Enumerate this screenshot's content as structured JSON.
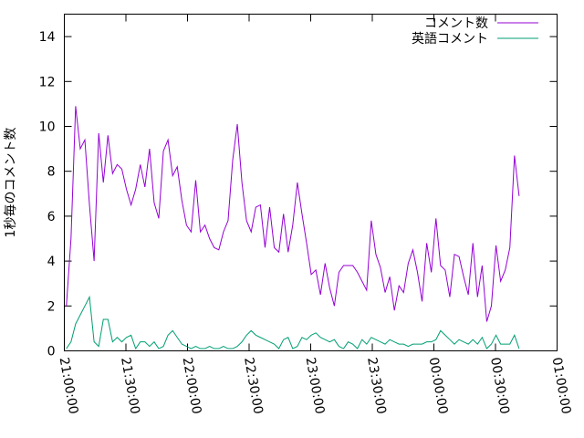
{
  "chart_data": {
    "type": "line",
    "y_label": "1秒毎のコメント数",
    "ylim": [
      0,
      15
    ],
    "yticks": [
      0,
      2,
      4,
      6,
      8,
      10,
      12,
      14
    ],
    "xlim": [
      "21:00:00",
      "01:00:00"
    ],
    "xticks": [
      "21:00:00",
      "21:30:00",
      "22:00:00",
      "22:30:00",
      "23:00:00",
      "23:30:00",
      "00:00:00",
      "00:30:00",
      "01:00:00"
    ],
    "legend": "upper right",
    "x": [
      "21:01:00",
      "21:03:15",
      "21:05:30",
      "21:07:45",
      "21:10:00",
      "21:12:15",
      "21:14:30",
      "21:16:45",
      "21:19:00",
      "21:21:15",
      "21:23:30",
      "21:25:45",
      "21:28:00",
      "21:30:15",
      "21:32:30",
      "21:34:45",
      "21:37:00",
      "21:39:15",
      "21:41:30",
      "21:43:45",
      "21:46:00",
      "21:48:15",
      "21:50:30",
      "21:52:45",
      "21:55:00",
      "21:57:15",
      "21:59:30",
      "22:01:45",
      "22:04:00",
      "22:06:15",
      "22:08:30",
      "22:10:45",
      "22:13:00",
      "22:15:15",
      "22:17:30",
      "22:19:45",
      "22:22:00",
      "22:24:15",
      "22:26:30",
      "22:28:45",
      "22:31:00",
      "22:33:15",
      "22:35:30",
      "22:37:45",
      "22:40:00",
      "22:42:15",
      "22:44:30",
      "22:46:45",
      "22:49:00",
      "22:51:15",
      "22:53:30",
      "22:55:45",
      "22:58:00",
      "23:00:15",
      "23:02:30",
      "23:04:45",
      "23:07:00",
      "23:09:15",
      "23:11:30",
      "23:13:45",
      "23:16:00",
      "23:18:15",
      "23:20:30",
      "23:22:45",
      "23:25:00",
      "23:27:15",
      "23:29:30",
      "23:31:45",
      "23:34:00",
      "23:36:15",
      "23:38:30",
      "23:40:45",
      "23:43:00",
      "23:45:15",
      "23:47:30",
      "23:49:45",
      "23:52:00",
      "23:54:15",
      "23:56:30",
      "23:58:45",
      "00:01:00",
      "00:03:15",
      "00:05:30",
      "00:07:45",
      "00:10:00",
      "00:12:15",
      "00:14:30",
      "00:16:45",
      "00:19:00",
      "00:21:15",
      "00:23:30",
      "00:25:45",
      "00:28:00",
      "00:30:15",
      "00:32:30",
      "00:34:45",
      "00:37:00",
      "00:39:15",
      "00:41:30"
    ],
    "series": [
      {
        "name": "コメント数",
        "color": "#9400d3",
        "values": [
          2.0,
          5.0,
          10.9,
          9.0,
          9.4,
          6.5,
          4.0,
          9.7,
          7.5,
          9.6,
          7.9,
          8.3,
          8.1,
          7.2,
          6.5,
          7.2,
          8.3,
          7.3,
          9.0,
          6.6,
          5.9,
          8.9,
          9.4,
          7.8,
          8.2,
          6.7,
          5.6,
          5.3,
          7.6,
          5.3,
          5.6,
          5.0,
          4.6,
          4.5,
          5.3,
          5.8,
          8.5,
          10.1,
          7.5,
          5.8,
          5.3,
          6.4,
          6.5,
          4.6,
          6.4,
          4.6,
          4.4,
          6.1,
          4.4,
          5.6,
          7.5,
          6.1,
          4.8,
          3.4,
          3.6,
          2.5,
          3.9,
          2.8,
          2.0,
          3.5,
          3.8,
          3.8,
          3.8,
          3.5,
          3.1,
          2.7,
          5.8,
          4.3,
          3.7,
          2.6,
          3.3,
          1.8,
          2.9,
          2.6,
          3.9,
          4.5,
          3.5,
          2.2,
          4.8,
          3.5,
          5.9,
          3.8,
          3.6,
          2.4,
          4.3,
          4.2,
          3.3,
          2.5,
          4.8,
          2.4,
          3.8,
          1.3,
          2.0,
          4.7,
          3.1,
          3.6,
          4.6,
          8.7,
          6.9
        ]
      },
      {
        "name": "英語コメント",
        "color": "#009e73",
        "values": [
          0.1,
          0.4,
          1.2,
          1.6,
          2.0,
          2.4,
          0.4,
          0.2,
          1.4,
          1.4,
          0.4,
          0.6,
          0.4,
          0.6,
          0.7,
          0.1,
          0.4,
          0.4,
          0.2,
          0.4,
          0.1,
          0.2,
          0.7,
          0.9,
          0.6,
          0.3,
          0.2,
          0.1,
          0.2,
          0.1,
          0.1,
          0.2,
          0.1,
          0.1,
          0.2,
          0.1,
          0.1,
          0.2,
          0.4,
          0.7,
          0.9,
          0.7,
          0.6,
          0.5,
          0.4,
          0.3,
          0.1,
          0.5,
          0.6,
          0.1,
          0.2,
          0.6,
          0.5,
          0.7,
          0.8,
          0.6,
          0.5,
          0.4,
          0.5,
          0.2,
          0.1,
          0.4,
          0.3,
          0.1,
          0.5,
          0.3,
          0.6,
          0.5,
          0.4,
          0.3,
          0.5,
          0.4,
          0.3,
          0.3,
          0.2,
          0.3,
          0.3,
          0.3,
          0.4,
          0.4,
          0.5,
          0.9,
          0.7,
          0.5,
          0.3,
          0.5,
          0.4,
          0.3,
          0.5,
          0.3,
          0.6,
          0.1,
          0.3,
          0.7,
          0.3,
          0.3,
          0.3,
          0.7,
          0.1
        ]
      }
    ]
  }
}
